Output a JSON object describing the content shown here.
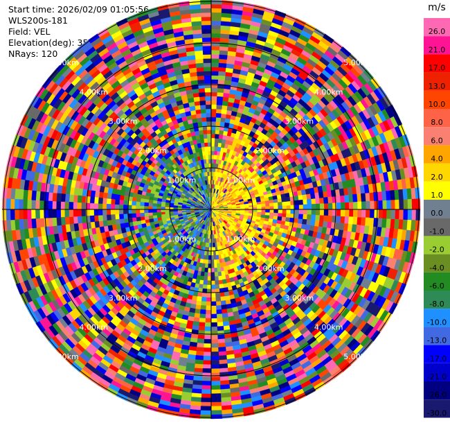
{
  "info": {
    "start_time": "Start time: 2026/02/09 01:05:56",
    "instrument": "WLS200s-181",
    "field": "Field: VEL",
    "elevation": "Elevation(deg): 35.00",
    "nrays": "NRays: 120"
  },
  "chart_data": {
    "type": "ppi",
    "field": "VEL",
    "units": "m/s",
    "nrays": 120,
    "range_ring_labels": [
      "1.00km",
      "2.00km",
      "3.00km",
      "4.00km",
      "5.00km"
    ],
    "colorbar": {
      "unit": "m/s",
      "ticks": [
        "26.0",
        "21.0",
        "17.0",
        "13.0",
        "10.0",
        "8.0",
        "6.0",
        "4.0",
        "2.0",
        "1.0",
        "0.0",
        "-1.0",
        "-2.0",
        "-4.0",
        "-6.0",
        "-8.0",
        "-10.0",
        "-13.0",
        "-17.0",
        "-21.0",
        "-26.0",
        "-30.0"
      ],
      "colors": [
        "#ff69b4",
        "#ff1493",
        "#ff0000",
        "#ee2200",
        "#ff4500",
        "#ff6347",
        "#fa8072",
        "#ffa500",
        "#ffd700",
        "#ffff00",
        "#708090",
        "#696969",
        "#9acd32",
        "#6b8e23",
        "#228b22",
        "#2e8b57",
        "#1e90ff",
        "#4169e1",
        "#0000ff",
        "#0000cd",
        "#000080",
        "#191970"
      ]
    }
  }
}
